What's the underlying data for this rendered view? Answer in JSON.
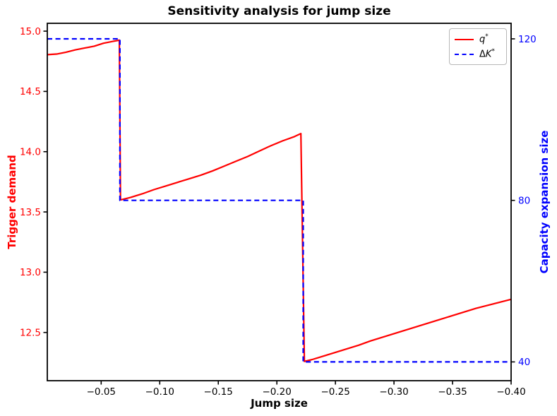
{
  "title": "Sensitivity analysis for jump size",
  "xlabel": "Jump size",
  "ylabel_left": "Trigger demand",
  "ylabel_right": "Capacity expansion size",
  "colors": {
    "q_line": "#ff0000",
    "dk_line": "#0000ff",
    "left_axis_text": "#ff0000",
    "right_axis_text": "#0000ff",
    "x_axis_text": "#000000",
    "spine": "#000000",
    "legend_border": "#b7b7b7"
  },
  "legend": {
    "items": [
      {
        "swatch": "solid-red",
        "prefix": "",
        "name": "q",
        "sup": "*"
      },
      {
        "swatch": "dashed-blue",
        "prefix": "Δ",
        "name": "K",
        "sup": "*"
      }
    ]
  },
  "chart_data": {
    "type": "line",
    "title": "Sensitivity analysis for jump size",
    "xlabel": "Jump size",
    "ylabel_left": "Trigger demand",
    "ylabel_right": "Capacity expansion size",
    "grid": false,
    "legend_position": "upper right",
    "x_axis": {
      "min": -0.004,
      "max": -0.4,
      "note": "values run from ~0 at left to -0.40 at right",
      "ticks": [
        -0.05,
        -0.1,
        -0.15,
        -0.2,
        -0.25,
        -0.3,
        -0.35,
        -0.4
      ],
      "tick_labels": [
        "−0.05",
        "−0.10",
        "−0.15",
        "−0.20",
        "−0.25",
        "−0.30",
        "−0.35",
        "−0.40"
      ]
    },
    "y_axis_left": {
      "min": 12.1,
      "max": 15.065,
      "ticks": [
        12.5,
        13.0,
        13.5,
        14.0,
        14.5,
        15.0
      ],
      "tick_labels": [
        "12.5",
        "13.0",
        "13.5",
        "14.0",
        "14.5",
        "15.0"
      ]
    },
    "y_axis_right": {
      "min": 35.35,
      "max": 123.85,
      "ticks": [
        40,
        80,
        120
      ],
      "tick_labels": [
        "40",
        "80",
        "120"
      ]
    },
    "series": [
      {
        "name": "q*",
        "axis": "left",
        "color": "#ff0000",
        "style": "solid",
        "width": 2.2,
        "points": [
          [
            -0.004,
            14.805
          ],
          [
            -0.012,
            14.81
          ],
          [
            -0.02,
            14.825
          ],
          [
            -0.028,
            14.845
          ],
          [
            -0.036,
            14.86
          ],
          [
            -0.044,
            14.875
          ],
          [
            -0.052,
            14.9
          ],
          [
            -0.06,
            14.915
          ],
          [
            -0.0655,
            14.925
          ],
          [
            -0.0665,
            13.6
          ],
          [
            -0.075,
            13.62
          ],
          [
            -0.085,
            13.65
          ],
          [
            -0.095,
            13.685
          ],
          [
            -0.105,
            13.715
          ],
          [
            -0.115,
            13.745
          ],
          [
            -0.125,
            13.775
          ],
          [
            -0.135,
            13.805
          ],
          [
            -0.145,
            13.84
          ],
          [
            -0.155,
            13.88
          ],
          [
            -0.165,
            13.92
          ],
          [
            -0.175,
            13.96
          ],
          [
            -0.185,
            14.005
          ],
          [
            -0.195,
            14.05
          ],
          [
            -0.205,
            14.09
          ],
          [
            -0.215,
            14.125
          ],
          [
            -0.2205,
            14.15
          ],
          [
            -0.2235,
            12.26
          ],
          [
            -0.23,
            12.275
          ],
          [
            -0.24,
            12.305
          ],
          [
            -0.25,
            12.335
          ],
          [
            -0.26,
            12.365
          ],
          [
            -0.27,
            12.395
          ],
          [
            -0.28,
            12.43
          ],
          [
            -0.29,
            12.46
          ],
          [
            -0.3,
            12.49
          ],
          [
            -0.31,
            12.52
          ],
          [
            -0.32,
            12.55
          ],
          [
            -0.33,
            12.58
          ],
          [
            -0.34,
            12.61
          ],
          [
            -0.35,
            12.64
          ],
          [
            -0.36,
            12.67
          ],
          [
            -0.37,
            12.7
          ],
          [
            -0.38,
            12.725
          ],
          [
            -0.39,
            12.75
          ],
          [
            -0.4,
            12.775
          ]
        ]
      },
      {
        "name": "ΔK*",
        "axis": "right",
        "color": "#0000ff",
        "style": "dashed",
        "width": 2.2,
        "points": [
          [
            -0.004,
            120
          ],
          [
            -0.066,
            120
          ],
          [
            -0.066,
            80
          ],
          [
            -0.2225,
            80
          ],
          [
            -0.2225,
            40
          ],
          [
            -0.4,
            40
          ]
        ]
      }
    ]
  }
}
